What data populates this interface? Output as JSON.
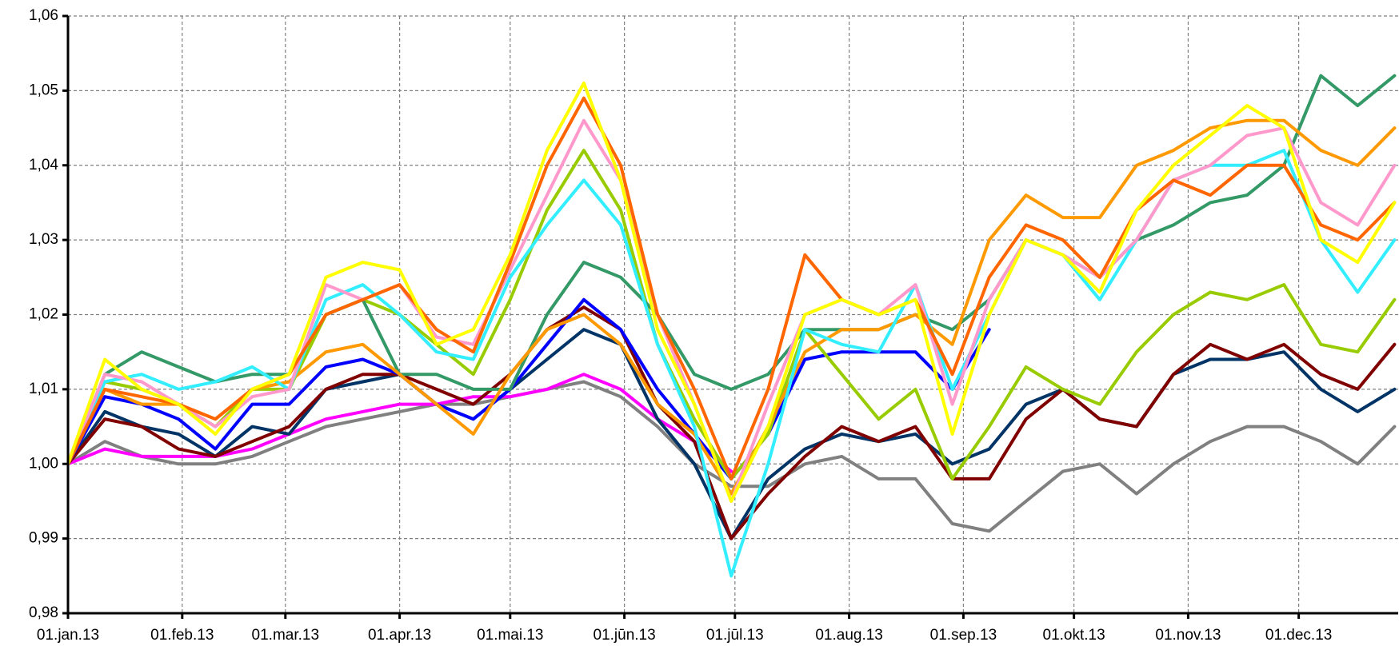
{
  "chart_data": {
    "type": "line",
    "x": [
      0,
      10,
      20,
      30,
      40,
      50,
      60,
      70,
      80,
      90,
      100,
      110,
      120,
      130,
      140,
      150,
      160,
      170,
      180,
      190,
      200,
      210,
      220,
      230,
      240,
      250,
      260,
      270,
      280,
      290,
      300,
      310,
      320,
      330,
      340,
      350,
      360
    ],
    "xlim": [
      0,
      361
    ],
    "xticks": [
      {
        "value": 0,
        "label": "01.jan.13"
      },
      {
        "value": 31,
        "label": "01.feb.13"
      },
      {
        "value": 59,
        "label": "01.mar.13"
      },
      {
        "value": 90,
        "label": "01.apr.13"
      },
      {
        "value": 120,
        "label": "01.mai.13"
      },
      {
        "value": 151,
        "label": "01.jūn.13"
      },
      {
        "value": 181,
        "label": "01.jūl.13"
      },
      {
        "value": 212,
        "label": "01.aug.13"
      },
      {
        "value": 243,
        "label": "01.sep.13"
      },
      {
        "value": 273,
        "label": "01.okt.13"
      },
      {
        "value": 304,
        "label": "01.nov.13"
      },
      {
        "value": 334,
        "label": "01.dec.13"
      }
    ],
    "ylim": [
      0.98,
      1.06
    ],
    "yticks": [
      {
        "value": 0.98,
        "label": "0,98"
      },
      {
        "value": 0.99,
        "label": "0,99"
      },
      {
        "value": 1.0,
        "label": "1,00"
      },
      {
        "value": 1.01,
        "label": "1,01"
      },
      {
        "value": 1.02,
        "label": "1,02"
      },
      {
        "value": 1.03,
        "label": "1,03"
      },
      {
        "value": 1.04,
        "label": "1,04"
      },
      {
        "value": 1.05,
        "label": "1,05"
      },
      {
        "value": 1.06,
        "label": "1,06"
      }
    ],
    "grid": true,
    "series": [
      {
        "color": "#808080",
        "values": [
          1.0,
          1.003,
          1.001,
          1.0,
          1.0,
          1.001,
          1.003,
          1.005,
          1.006,
          1.007,
          1.008,
          1.008,
          1.009,
          1.01,
          1.011,
          1.009,
          1.005,
          1.0,
          0.997,
          0.997,
          1.0,
          1.001,
          0.998,
          0.998,
          0.992,
          0.991,
          0.995,
          0.999,
          1.0,
          0.996,
          1.0,
          1.003,
          1.005,
          1.005,
          1.003,
          1.0,
          1.005
        ]
      },
      {
        "color": "#ff00ff",
        "values": [
          1.0,
          1.002,
          1.001,
          1.001,
          1.001,
          1.002,
          1.004,
          1.006,
          1.007,
          1.008,
          1.008,
          1.009,
          1.009,
          1.01,
          1.012,
          1.01,
          1.006,
          1.003,
          0.999,
          null,
          null,
          null,
          null,
          null,
          null,
          null,
          null,
          null,
          null,
          null,
          null,
          null,
          null,
          null,
          null,
          null,
          null
        ]
      },
      {
        "color": "#003366",
        "values": [
          1.0,
          1.007,
          1.005,
          1.004,
          1.001,
          1.005,
          1.004,
          1.01,
          1.011,
          1.012,
          1.008,
          1.006,
          1.01,
          1.014,
          1.018,
          1.016,
          1.006,
          1.0,
          0.99,
          0.998,
          1.002,
          1.004,
          1.003,
          1.004,
          1.0,
          1.002,
          1.008,
          1.01,
          1.006,
          1.005,
          1.012,
          1.014,
          1.014,
          1.015,
          1.01,
          1.007,
          1.01
        ]
      },
      {
        "color": "#800000",
        "values": [
          1.0,
          1.006,
          1.005,
          1.002,
          1.001,
          1.003,
          1.005,
          1.01,
          1.012,
          1.012,
          1.01,
          1.008,
          1.012,
          1.018,
          1.021,
          1.018,
          1.008,
          1.003,
          0.99,
          0.996,
          1.001,
          1.005,
          1.003,
          1.005,
          0.998,
          0.998,
          1.006,
          1.01,
          1.006,
          1.005,
          1.012,
          1.016,
          1.014,
          1.016,
          1.012,
          1.01,
          1.016
        ]
      },
      {
        "color": "#0000ff",
        "values": [
          1.0,
          1.009,
          1.008,
          1.006,
          1.002,
          1.008,
          1.008,
          1.013,
          1.014,
          1.012,
          1.008,
          1.006,
          1.01,
          1.016,
          1.022,
          1.018,
          1.01,
          1.004,
          0.998,
          1.004,
          1.014,
          1.015,
          1.015,
          1.015,
          1.01,
          1.018,
          null,
          null,
          null,
          null,
          null,
          null,
          null,
          null,
          null,
          null,
          null
        ]
      },
      {
        "color": "#99cc00",
        "values": [
          1.0,
          1.011,
          1.01,
          1.008,
          1.005,
          1.01,
          1.01,
          1.02,
          1.022,
          1.02,
          1.016,
          1.012,
          1.022,
          1.034,
          1.042,
          1.034,
          1.016,
          1.006,
          0.998,
          1.004,
          1.018,
          1.012,
          1.006,
          1.01,
          0.998,
          1.005,
          1.013,
          1.01,
          1.008,
          1.015,
          1.02,
          1.023,
          1.022,
          1.024,
          1.016,
          1.015,
          1.022
        ]
      },
      {
        "color": "#339966",
        "values": [
          1.0,
          1.012,
          1.015,
          1.013,
          1.011,
          1.012,
          1.012,
          1.02,
          1.022,
          1.012,
          1.012,
          1.01,
          1.01,
          1.02,
          1.027,
          1.025,
          1.02,
          1.012,
          1.01,
          1.012,
          1.018,
          1.018,
          1.018,
          1.02,
          1.018,
          1.022,
          1.03,
          1.028,
          1.025,
          1.03,
          1.032,
          1.035,
          1.036,
          1.04,
          1.052,
          1.048,
          1.052
        ]
      },
      {
        "color": "#ff9900",
        "values": [
          1.0,
          1.01,
          1.008,
          1.008,
          1.006,
          1.01,
          1.011,
          1.015,
          1.016,
          1.012,
          1.008,
          1.004,
          1.012,
          1.018,
          1.02,
          1.016,
          1.008,
          1.004,
          0.996,
          1.005,
          1.015,
          1.018,
          1.018,
          1.02,
          1.016,
          1.03,
          1.036,
          1.033,
          1.033,
          1.04,
          1.042,
          1.045,
          1.046,
          1.046,
          1.042,
          1.04,
          1.045
        ]
      },
      {
        "color": "#33eeff",
        "values": [
          1.0,
          1.011,
          1.012,
          1.01,
          1.011,
          1.013,
          1.01,
          1.022,
          1.024,
          1.02,
          1.015,
          1.014,
          1.025,
          1.032,
          1.038,
          1.032,
          1.016,
          1.005,
          0.985,
          1.0,
          1.018,
          1.016,
          1.015,
          1.024,
          1.01,
          1.02,
          1.03,
          1.028,
          1.022,
          1.03,
          1.038,
          1.04,
          1.04,
          1.042,
          1.03,
          1.023,
          1.03
        ]
      },
      {
        "color": "#ff99cc",
        "values": [
          1.0,
          1.012,
          1.011,
          1.008,
          1.005,
          1.009,
          1.01,
          1.024,
          1.022,
          1.024,
          1.017,
          1.016,
          1.026,
          1.036,
          1.046,
          1.038,
          1.02,
          1.008,
          0.995,
          1.008,
          1.02,
          1.022,
          1.02,
          1.024,
          1.008,
          1.022,
          1.03,
          1.028,
          1.025,
          1.03,
          1.038,
          1.04,
          1.044,
          1.045,
          1.035,
          1.032,
          1.04
        ]
      },
      {
        "color": "#ff6600",
        "values": [
          1.0,
          1.01,
          1.009,
          1.008,
          1.006,
          1.01,
          1.012,
          1.02,
          1.022,
          1.024,
          1.018,
          1.015,
          1.027,
          1.04,
          1.049,
          1.04,
          1.02,
          1.01,
          0.998,
          1.01,
          1.028,
          1.022,
          1.02,
          1.022,
          1.012,
          1.025,
          1.032,
          1.03,
          1.025,
          1.034,
          1.038,
          1.036,
          1.04,
          1.04,
          1.032,
          1.03,
          1.035
        ]
      },
      {
        "color": "#ffff00",
        "values": [
          1.0,
          1.014,
          1.01,
          1.008,
          1.004,
          1.01,
          1.012,
          1.025,
          1.027,
          1.026,
          1.016,
          1.018,
          1.028,
          1.042,
          1.051,
          1.038,
          1.018,
          1.008,
          0.995,
          1.005,
          1.02,
          1.022,
          1.02,
          1.022,
          1.004,
          1.02,
          1.03,
          1.028,
          1.023,
          1.034,
          1.04,
          1.044,
          1.048,
          1.045,
          1.03,
          1.027,
          1.035
        ]
      }
    ]
  }
}
